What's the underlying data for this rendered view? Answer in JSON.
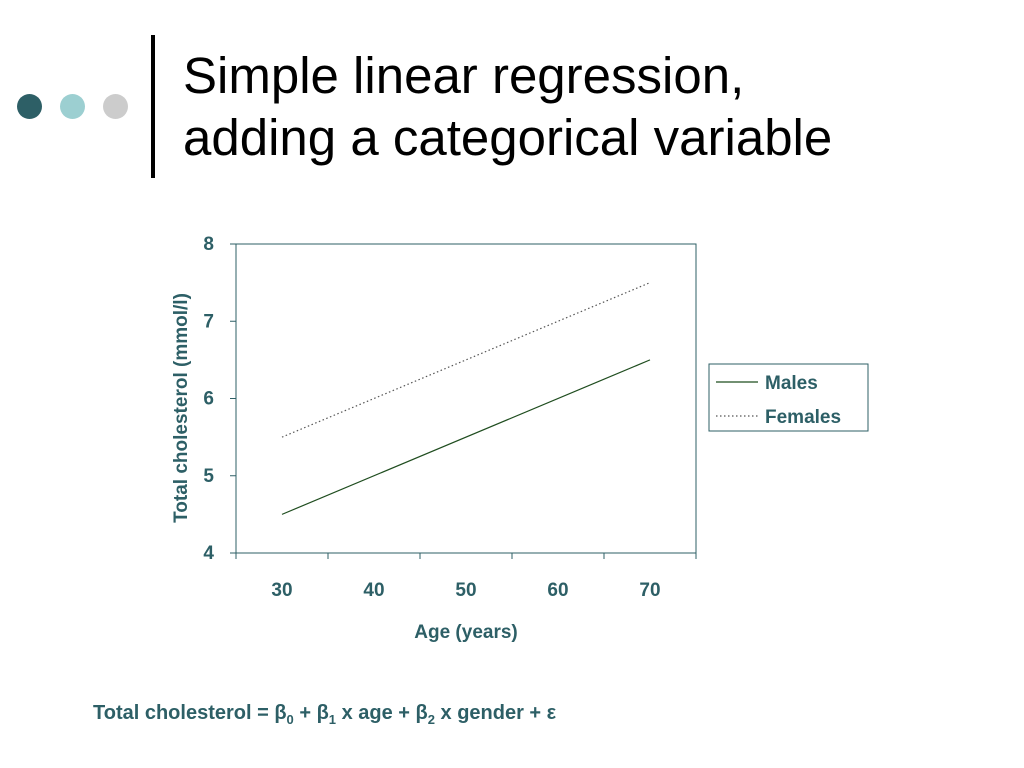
{
  "slide": {
    "title_lines": [
      "Simple linear regression,",
      "adding a categorical variable"
    ],
    "dots": [
      {
        "name": "dark",
        "color": "#2d5f66"
      },
      {
        "name": "light",
        "color": "#9ccfd1"
      },
      {
        "name": "grey",
        "color": "#cccccc"
      }
    ],
    "formula": {
      "lhs": "Total cholesterol = β",
      "b0_sub": "0",
      "t1": " + β",
      "b1_sub": "1",
      "t2": " x age + β",
      "b2_sub": "2",
      "t3": " x gender + ε"
    }
  },
  "chart_data": {
    "type": "line",
    "xlabel": "Age (years)",
    "ylabel": "Total cholesterol (mmol/l)",
    "xlim": [
      25,
      75
    ],
    "ylim": [
      4,
      8
    ],
    "xticks": [
      30,
      40,
      50,
      60,
      70
    ],
    "yticks": [
      4,
      5,
      6,
      7,
      8
    ],
    "grid": false,
    "legend": "right",
    "label_color": "#2d5f66",
    "series": [
      {
        "name": "Males",
        "x": [
          30,
          70
        ],
        "y": [
          4.5,
          6.5
        ],
        "color": "#1f4d1f",
        "dash": "solid"
      },
      {
        "name": "Females",
        "x": [
          30,
          70
        ],
        "y": [
          5.5,
          7.5
        ],
        "color": "#555555",
        "dash": "dotted"
      }
    ]
  }
}
